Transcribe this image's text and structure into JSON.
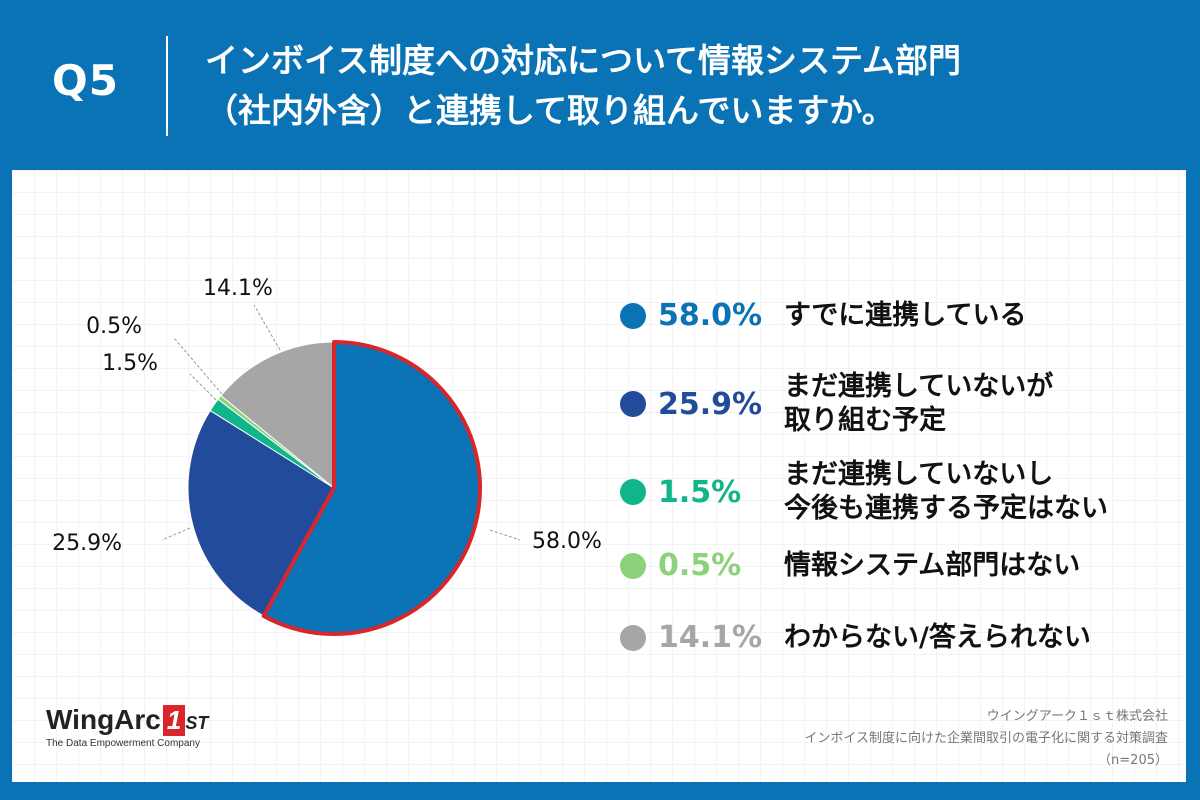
{
  "header": {
    "question_no": "Q5",
    "question_line1": "インボイス制度への対応について情報システム部門",
    "question_line2": "（社内外含）と連携して取り組んでいますか。"
  },
  "colors": {
    "background": "#0a73b6",
    "highlight_border": "#d8262a",
    "leader_line": "#999999"
  },
  "chart_data": {
    "type": "pie",
    "title": "インボイス制度への対応について情報システム部門（社内外含）と連携して取り組んでいますか。",
    "unit": "%",
    "start_angle_deg": 0,
    "direction": "clockwise",
    "highlighted": "すでに連携している",
    "slices": [
      {
        "label": "すでに連携している",
        "value": 58.0,
        "value_label": "58.0%",
        "color": "#0a73b6"
      },
      {
        "label": "まだ連携していないが\n取り組む予定",
        "value": 25.9,
        "value_label": "25.9%",
        "color": "#224c9b"
      },
      {
        "label": "まだ連携していないし\n今後も連携する予定はない",
        "value": 1.5,
        "value_label": "1.5%",
        "color": "#10b58a"
      },
      {
        "label": "情報システム部門はない",
        "value": 0.5,
        "value_label": "0.5%",
        "color": "#8cd27a"
      },
      {
        "label": "わからない/答えられない",
        "value": 14.1,
        "value_label": "14.1%",
        "color": "#a6a6a6"
      }
    ]
  },
  "logo": {
    "brand": "WingArc",
    "brand_mark": "1",
    "brand_suffix": "ST",
    "tagline": "The Data Empowerment Company"
  },
  "source": {
    "company": "ウイングアーク１ｓｔ株式会社",
    "survey": "インボイス制度に向けた企業間取引の電子化に関する対策調査",
    "sample": "（n=205）"
  }
}
